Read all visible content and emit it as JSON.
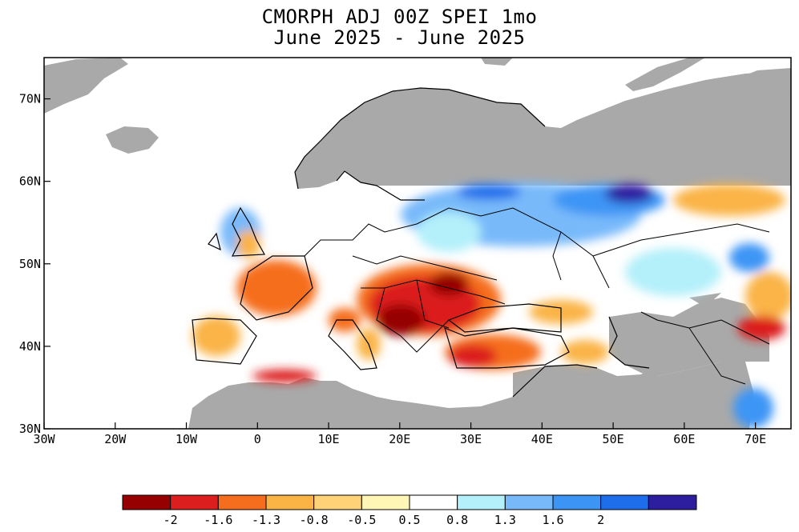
{
  "title_line1": "CMORPH ADJ 00Z SPEI 1mo",
  "title_line2": "June 2025 - June 2025",
  "lat_ticks": [
    "70N",
    "60N",
    "50N",
    "40N",
    "30N"
  ],
  "lat_values": [
    70,
    60,
    50,
    40,
    30
  ],
  "lon_ticks": [
    "30W",
    "20W",
    "10W",
    "0",
    "10E",
    "20E",
    "30E",
    "40E",
    "50E",
    "60E",
    "70E"
  ],
  "lon_values": [
    -30,
    -20,
    -10,
    0,
    10,
    20,
    30,
    40,
    50,
    60,
    70
  ],
  "map_extent": {
    "lon": [
      -30,
      75
    ],
    "lat": [
      30,
      75
    ]
  },
  "legend": {
    "labels": [
      "-2",
      "-1.6",
      "-1.3",
      "-0.8",
      "-0.5",
      "0.5",
      "0.8",
      "1.3",
      "1.6",
      "2"
    ],
    "colors": [
      "#960000",
      "#dc1e1e",
      "#f56e1e",
      "#fab446",
      "#ffd278",
      "#fff5b4",
      "#ffffff",
      "#b4f0fa",
      "#78b9fa",
      "#3c95f5",
      "#1e6eeb",
      "#2d1ea0"
    ]
  },
  "colors": {
    "land_nodata": "#a9a9a9",
    "ocean": "#ffffff",
    "boundary": "#000000"
  }
}
